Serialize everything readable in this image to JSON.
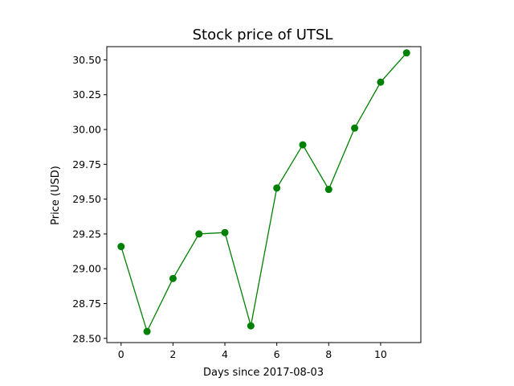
{
  "chart_data": {
    "type": "line",
    "title": "Stock price of UTSL",
    "xlabel": "Days since 2017-08-03",
    "ylabel": "Price (USD)",
    "xlim": [
      -0.55,
      11.55
    ],
    "ylim": [
      28.47,
      30.595
    ],
    "x_ticks": [
      0,
      2,
      4,
      6,
      8,
      10
    ],
    "y_ticks": [
      28.5,
      28.75,
      29.0,
      29.25,
      29.5,
      29.75,
      30.0,
      30.25,
      30.5
    ],
    "y_tick_labels": [
      "28.50",
      "28.75",
      "29.00",
      "29.25",
      "29.50",
      "29.75",
      "30.00",
      "30.25",
      "30.50"
    ],
    "grid": false,
    "series": [
      {
        "color": "#008000",
        "marker": "circle",
        "x": [
          0,
          1,
          2,
          3,
          4,
          5,
          6,
          7,
          8,
          9,
          10,
          11
        ],
        "values": [
          29.16,
          28.55,
          28.93,
          29.25,
          29.26,
          28.59,
          29.58,
          29.89,
          29.57,
          30.01,
          30.34,
          30.55
        ]
      }
    ]
  }
}
